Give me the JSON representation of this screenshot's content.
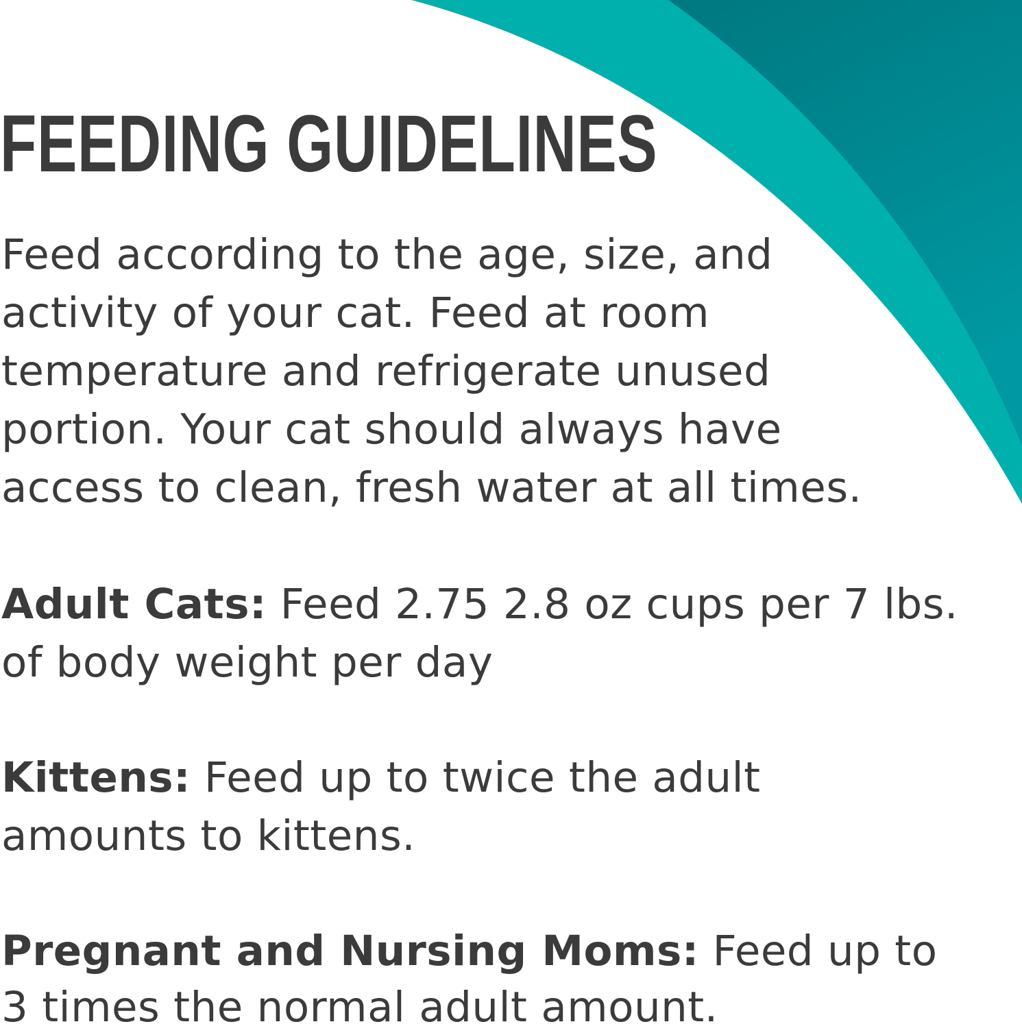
{
  "colors": {
    "text": "#3b3b3b",
    "accent_light": "#00b0ac",
    "accent_dark": "#00787f"
  },
  "title": "FEEDING GUIDELINES",
  "intro": [
    "Feed according to the age, size, and",
    "activity of your cat. Feed at room",
    "temperature and refrigerate unused",
    "portion. Your cat should always have",
    "access to clean, fresh water at all times."
  ],
  "adult": {
    "label": "Adult Cats:",
    "lines": [
      " Feed 2.75 2.8 oz cups per 7 lbs.",
      "of body weight per day"
    ]
  },
  "kittens": {
    "label": "Kittens:",
    "lines": [
      " Feed up to twice the adult",
      "amounts to kittens."
    ]
  },
  "pregnant": {
    "label": "Pregnant and Nursing Moms:",
    "lines": [
      " Feed up to",
      "3 times the normal adult amount."
    ]
  }
}
